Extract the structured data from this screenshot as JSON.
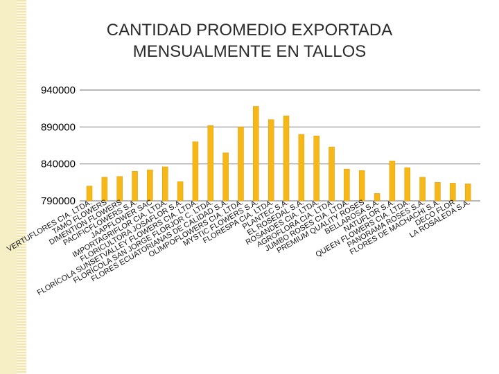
{
  "title": {
    "line1": "CANTIDAD PROMEDIO EXPORTADA",
    "line2": "MENSUALMENTE EN TALLOS"
  },
  "colors": {
    "bar": "#f5b818",
    "bar_edge": "#d99a00",
    "grid": "#8f8f8f",
    "axis_text": "#000000",
    "category_text": "#111111",
    "side_bar": "#f6efc6"
  },
  "chart_data": {
    "type": "bar",
    "title": "CANTIDAD PROMEDIO EXPORTADA MENSUALMENTE EN TALLOS",
    "xlabel": "",
    "ylabel": "",
    "ylim": [
      790000,
      940000
    ],
    "yticks": [
      790000,
      840000,
      890000,
      940000
    ],
    "ytick_labels": [
      "790000",
      "840000",
      "890000",
      "940000"
    ],
    "grid": true,
    "legend": "none",
    "categories": [
      "VERTUFLORES CIA. LTDA.",
      "TAMO FLOWERS",
      "DIMENTION FLOWERS",
      "PACIFICFLOWERS S.A.",
      "JAAPFLOWER SAC",
      "IMPORTAGRIFLOR CIA. LTDA.",
      "FLORICULTORA JOSAFLOR S.A.",
      "FLORÍCOLA SUNSETVALLEY FLOWERS CIA. LTDA.",
      "FLORÍCOLA SAN JORGE FLORJOR C. LTDA.",
      "FLORES ECUATORIANAS DE CALIDAD S.A.",
      "OLIMPOFLOWERS CIA. LTDA.",
      "MYSTIC FLOWERS S.A.",
      "FLORESPA CIA. LTDA.",
      "PLANTEC S.A.",
      "EL ROSEDAL S.A.",
      "ROSANDES CIA. LTDA.",
      "AGROFLORA CIA. LTDA.",
      "JUMBO ROSES CIA. LTDA.",
      "PREMIUM QUALITY ROSES",
      "BELLAROSA S.A.",
      "NATUFLOR S.A.",
      "QUEEN FLOWERS CIA. LTDA.",
      "PANORAMA ROSES S.A.",
      "FLORES DE MACHACHI S.A.",
      "DECO FLOR",
      "LA ROSALEDA S.A."
    ],
    "values": [
      810000,
      822000,
      823000,
      830000,
      832000,
      836000,
      816000,
      870000,
      892000,
      855000,
      890000,
      918000,
      900000,
      905000,
      880000,
      878000,
      863000,
      833000,
      831000,
      800000,
      844000,
      835000,
      822000,
      815000,
      814000,
      813000
    ]
  }
}
